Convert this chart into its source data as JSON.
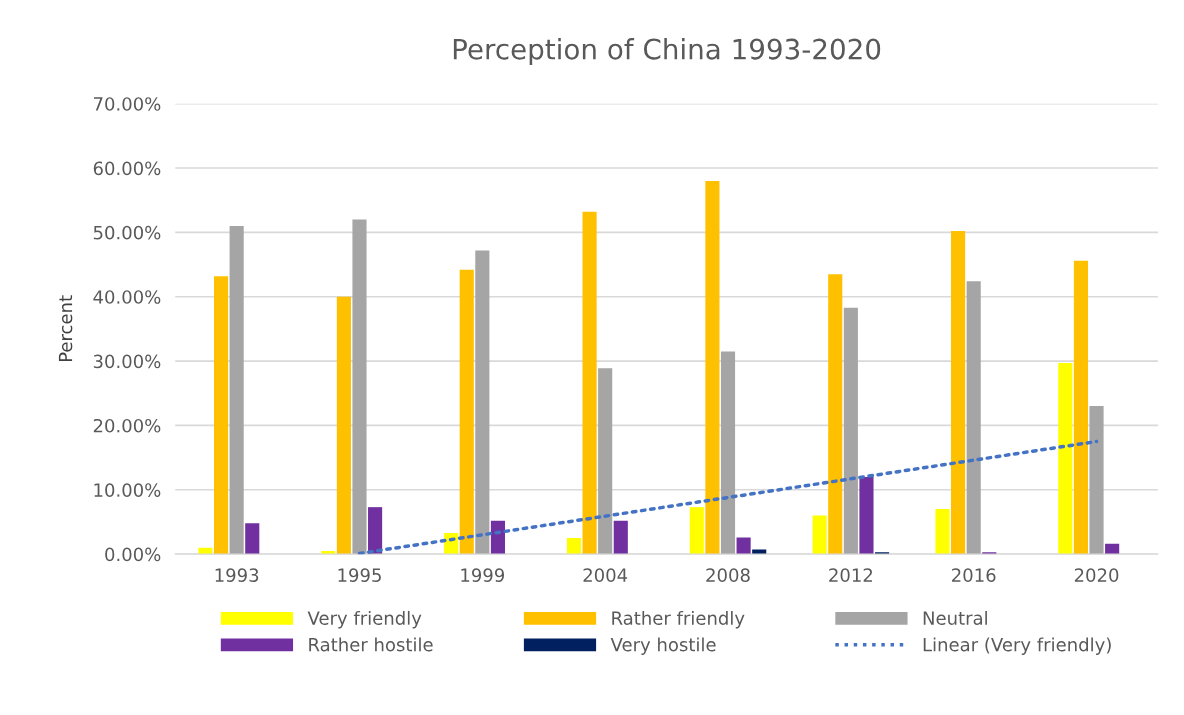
{
  "chart_data": {
    "type": "bar",
    "title": "Perception of China 1993-2020",
    "ylabel": "Percent",
    "categories": [
      "1993",
      "1995",
      "1999",
      "2004",
      "2008",
      "2012",
      "2016",
      "2020"
    ],
    "series": [
      {
        "name": "Very friendly",
        "color": "#ffff00",
        "values": [
          1.0,
          0.5,
          3.3,
          2.5,
          7.3,
          6.0,
          7.0,
          29.7
        ]
      },
      {
        "name": "Rather friendly",
        "color": "#ffc000",
        "values": [
          43.2,
          40.0,
          44.2,
          53.2,
          58.0,
          43.5,
          50.2,
          45.6
        ]
      },
      {
        "name": "Neutral",
        "color": "#a5a5a5",
        "values": [
          51.0,
          52.0,
          47.2,
          28.9,
          31.5,
          38.3,
          42.4,
          23.0
        ]
      },
      {
        "name": "Rather hostile",
        "color": "#7030a0",
        "values": [
          4.8,
          7.3,
          5.2,
          5.2,
          2.6,
          12.0,
          0.3,
          1.6
        ]
      },
      {
        "name": "Very hostile",
        "color": "#002060",
        "values": [
          null,
          null,
          null,
          null,
          0.7,
          0.3,
          null,
          null
        ]
      },
      {
        "name": "Linear (Very friendly)",
        "type": "line",
        "color": "#4472c4",
        "line_style": "dotted",
        "values": [
          null,
          0.1,
          3.0,
          5.9,
          8.8,
          11.7,
          14.6,
          17.5
        ]
      }
    ],
    "ylim": [
      0,
      70
    ],
    "yticks": [
      {
        "value": 0,
        "label": "0.00%"
      },
      {
        "value": 10,
        "label": "10.00%"
      },
      {
        "value": 20,
        "label": "20.00%"
      },
      {
        "value": 30,
        "label": "30.00%"
      },
      {
        "value": 40,
        "label": "40.00%"
      },
      {
        "value": 50,
        "label": "50.00%"
      },
      {
        "value": 60,
        "label": "60.00%"
      },
      {
        "value": 70,
        "label": "70.00%"
      }
    ],
    "grid": "y",
    "legend": "bottom"
  }
}
